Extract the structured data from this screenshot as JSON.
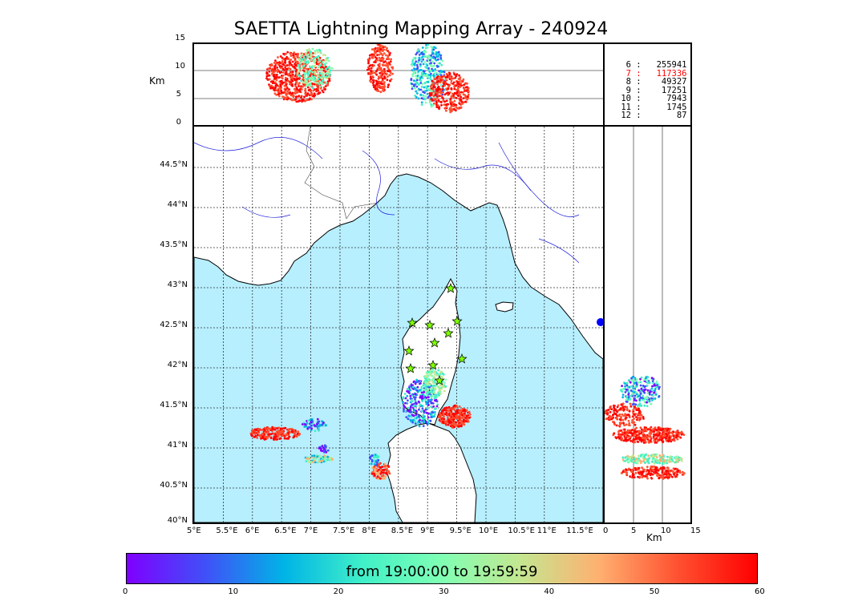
{
  "title": "SAETTA Lightning Mapping Array - 240924",
  "alt_panel": {
    "ylabel": "Km",
    "yticks": [
      "15",
      "10",
      "5",
      "0"
    ]
  },
  "side_panel": {
    "xlabel": "Km",
    "xticks": [
      "0",
      "5",
      "10",
      "15"
    ]
  },
  "stats": [
    {
      "label": "6",
      "value": "255941",
      "highlight": false
    },
    {
      "label": "7",
      "value": "117336",
      "highlight": true
    },
    {
      "label": "8",
      "value": "49327",
      "highlight": false
    },
    {
      "label": "9",
      "value": "17251",
      "highlight": false
    },
    {
      "label": "10",
      "value": "7943",
      "highlight": false
    },
    {
      "label": "11",
      "value": "1745",
      "highlight": false
    },
    {
      "label": "12",
      "value": "87",
      "highlight": false
    }
  ],
  "map": {
    "lat_labels": [
      "44.5°N",
      "44°N",
      "43.5°N",
      "43°N",
      "42.5°N",
      "42°N",
      "41.5°N",
      "41°N",
      "40.5°N",
      "40°N"
    ],
    "lon_labels": [
      "5°E",
      "5.5°E",
      "6°E",
      "6.5°E",
      "7°E",
      "7.5°E",
      "8°E",
      "8.5°E",
      "9°E",
      "9.5°E",
      "10°E",
      "10.5°E",
      "11°E",
      "11.5°E"
    ],
    "sea_color": "#b7efff",
    "land_color": "#ffffff",
    "station_color": "#7fff00"
  },
  "colorbar": {
    "label": "from 19:00:00 to 19:59:59",
    "ticks": [
      "0",
      "10",
      "20",
      "30",
      "40",
      "50",
      "60"
    ],
    "colormap": "rainbow"
  }
}
